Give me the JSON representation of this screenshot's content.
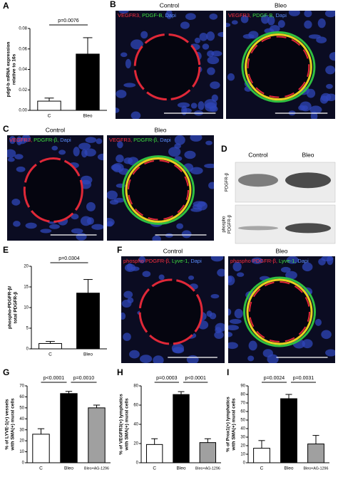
{
  "chart_data": [
    {
      "type": "bar",
      "panel": "A",
      "y_label": [
        "pdgf-b mRNA expression",
        "relative to 16s"
      ],
      "categories": [
        "C",
        "Bleo"
      ],
      "values": [
        0.009,
        0.055
      ],
      "errors": [
        0.003,
        0.016
      ],
      "colors": [
        "#ffffff",
        "#000000"
      ],
      "ylim": [
        0,
        0.08
      ],
      "yticks": [
        {
          "value": 0,
          "label": "0.00"
        },
        {
          "value": 0.02,
          "label": "0.02"
        },
        {
          "value": 0.04,
          "label": "0.04"
        },
        {
          "value": 0.06,
          "label": "0.06"
        },
        {
          "value": 0.08,
          "label": "0.08"
        }
      ],
      "annotations": [
        "p=0.0076"
      ]
    },
    {
      "type": "bar",
      "panel": "E",
      "y_label": [
        "phospho-PDGFR-β/",
        "total PDGFR-β"
      ],
      "categories": [
        "C",
        "Bleo"
      ],
      "values": [
        1.3,
        13.5
      ],
      "errors": [
        0.5,
        3.3
      ],
      "colors": [
        "#ffffff",
        "#000000"
      ],
      "ylim": [
        0,
        20
      ],
      "yticks": [
        0,
        5,
        10,
        15,
        20
      ],
      "annotations": [
        "p=0.0304"
      ]
    },
    {
      "type": "bar",
      "panel": "G",
      "y_label": [
        "% of LYVE-1(+) vessels",
        "with SMA(+) mural cells"
      ],
      "categories": [
        "C",
        "Bleo",
        "Bleo+AG-1296"
      ],
      "values": [
        26,
        63,
        50
      ],
      "errors": [
        5,
        2,
        2.5
      ],
      "colors": [
        "#ffffff",
        "#000000",
        "#a0a0a0"
      ],
      "ylim": [
        0,
        70
      ],
      "yticks": [
        0,
        10,
        20,
        30,
        40,
        50,
        60,
        70
      ],
      "annotations": [
        "p<0.0001",
        "p=0.0010"
      ]
    },
    {
      "type": "bar",
      "panel": "H",
      "y_label": [
        "% of VEGFR3(+) lymphatics",
        "with SMA(+) mural cells"
      ],
      "categories": [
        "C",
        "Bleo",
        "Bleo+AG-1296"
      ],
      "values": [
        19,
        71,
        21
      ],
      "errors": [
        6,
        3,
        4
      ],
      "colors": [
        "#ffffff",
        "#000000",
        "#a0a0a0"
      ],
      "ylim": [
        0,
        80
      ],
      "yticks": [
        0,
        20,
        40,
        60,
        80
      ],
      "annotations": [
        "p=0.0003",
        "p<0.0001"
      ]
    },
    {
      "type": "bar",
      "panel": "I",
      "y_label": [
        "% of Prox1(+) lymphatics",
        "with SMA(+) mural cells"
      ],
      "categories": [
        "C",
        "Bleo",
        "Bleo+AG-1296"
      ],
      "values": [
        17,
        75,
        22
      ],
      "errors": [
        9,
        5,
        10
      ],
      "colors": [
        "#ffffff",
        "#000000",
        "#a0a0a0"
      ],
      "ylim": [
        0,
        90
      ],
      "yticks": [
        0,
        10,
        20,
        30,
        40,
        50,
        60,
        70,
        80,
        90
      ],
      "annotations": [
        "p=0.0024",
        "p=0.0031"
      ]
    }
  ],
  "image_panels": [
    {
      "panel": "B",
      "headers": [
        "Control",
        "Bleo"
      ],
      "stain": [
        "VEGFR3,",
        "PDGF-B,",
        "Dapi"
      ]
    },
    {
      "panel": "C",
      "headers": [
        "Control",
        "Bleo"
      ],
      "stain": [
        "VEGFR3,",
        "PDGFR-β,",
        "Dapi"
      ]
    },
    {
      "panel": "D",
      "headers": [
        "Control",
        "Bleo"
      ],
      "rows": [
        [
          "PDGFR-β"
        ],
        [
          "phospho",
          "PDGFR-β"
        ]
      ]
    },
    {
      "panel": "F",
      "headers": [
        "Control",
        "Bleo"
      ],
      "stain": [
        "phospho PDGFR-β,",
        "Lyve-1,",
        "Dapi"
      ]
    }
  ]
}
